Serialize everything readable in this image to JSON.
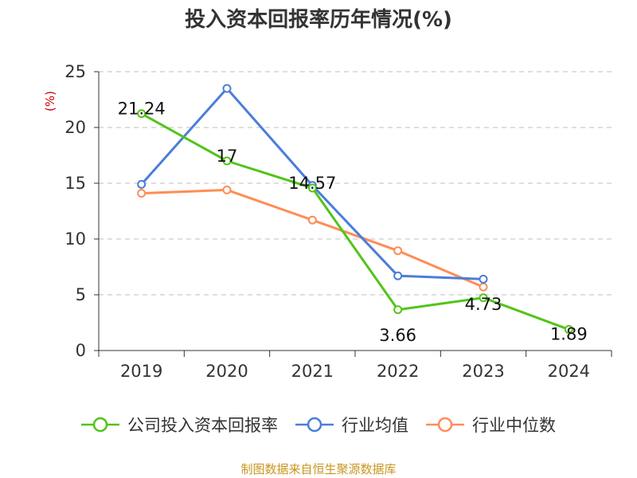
{
  "title": "投入资本回报率历年情况(%)",
  "unit_label": "(%)",
  "source": "制图数据来自恒生聚源数据库",
  "chart_data": {
    "type": "line",
    "title": "投入资本回报率历年情况(%)",
    "ylabel": "(%)",
    "categories": [
      "2019",
      "2020",
      "2021",
      "2022",
      "2023",
      "2024"
    ],
    "ylim": [
      0,
      25
    ],
    "yticks": [
      0,
      5,
      10,
      15,
      20,
      25
    ],
    "grid": true,
    "legend_position": "bottom",
    "series": [
      {
        "name": "公司投入资本回报率",
        "color": "#52c41a",
        "values": [
          21.24,
          17,
          14.57,
          3.66,
          4.73,
          1.89
        ],
        "labels": [
          "21.24",
          "17",
          "14.57",
          "3.66",
          "4.73",
          "1.89"
        ]
      },
      {
        "name": "行业均值",
        "color": "#4a7ed9",
        "values": [
          14.9,
          23.5,
          14.8,
          6.7,
          6.4,
          null
        ]
      },
      {
        "name": "行业中位数",
        "color": "#ff8c55",
        "values": [
          14.1,
          14.4,
          11.7,
          8.95,
          5.7,
          null
        ]
      }
    ]
  }
}
